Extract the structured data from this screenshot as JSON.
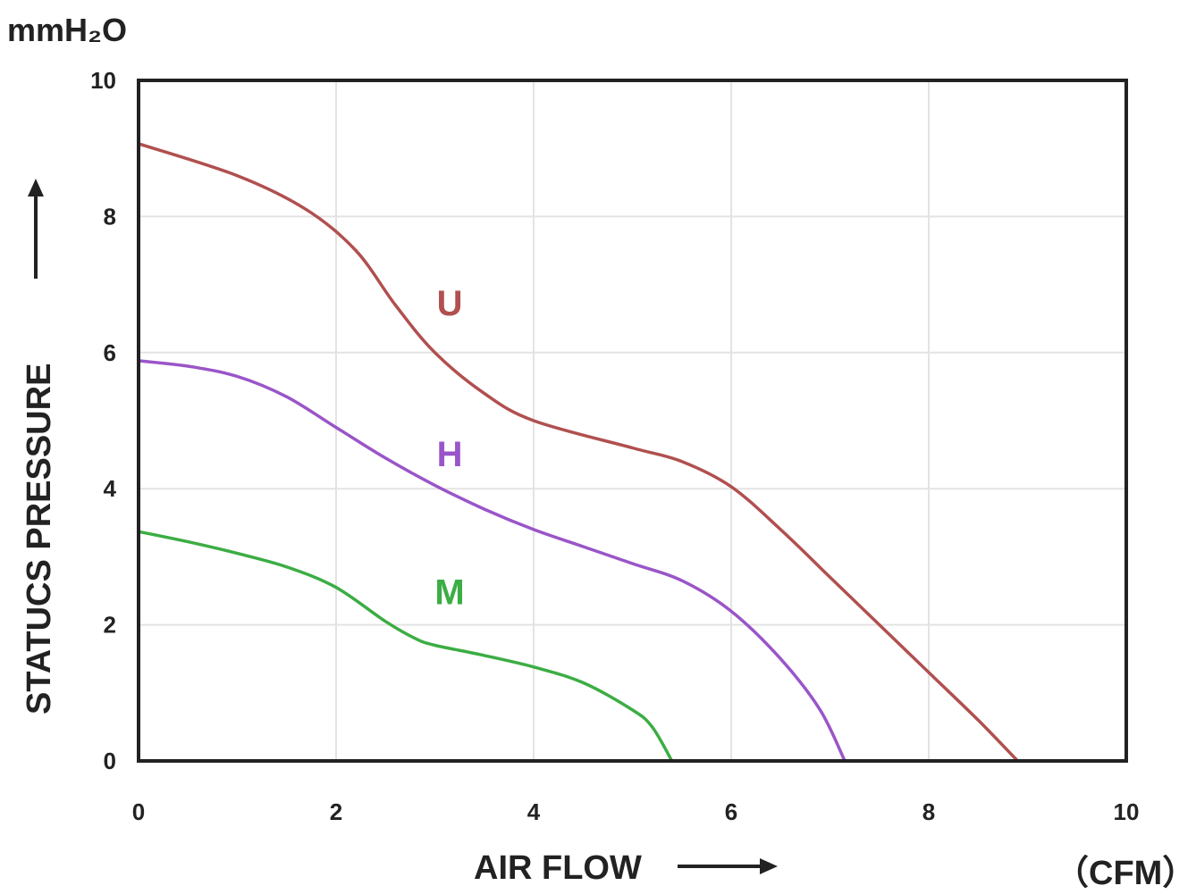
{
  "chart_data": {
    "type": "line",
    "xlabel": "AIR FLOW",
    "x_unit": "（CFM）",
    "ylabel": "STATUCS PRESSURE",
    "y_unit": "mmH₂O",
    "xlim": [
      0,
      10
    ],
    "ylim": [
      0,
      10
    ],
    "xticks": [
      "0",
      "2",
      "4",
      "6",
      "8",
      "10"
    ],
    "yticks": [
      "0",
      "2",
      "4",
      "6",
      "8",
      "10"
    ],
    "grid": true,
    "legend": "inline labels on curves",
    "series": [
      {
        "name": "U",
        "color": "#b0504f",
        "points": [
          [
            0,
            9.07
          ],
          [
            1,
            8.6
          ],
          [
            1.7,
            8.1
          ],
          [
            2.2,
            7.5
          ],
          [
            2.6,
            6.7
          ],
          [
            3,
            6.0
          ],
          [
            3.5,
            5.4
          ],
          [
            4,
            5.0
          ],
          [
            5,
            4.6
          ],
          [
            5.5,
            4.4
          ],
          [
            6,
            4.03
          ],
          [
            6.5,
            3.4
          ],
          [
            7,
            2.7
          ],
          [
            7.5,
            2.0
          ],
          [
            8,
            1.3
          ],
          [
            8.5,
            0.6
          ],
          [
            8.9,
            0.0
          ]
        ]
      },
      {
        "name": "H",
        "color": "#9a55c8",
        "points": [
          [
            0,
            5.88
          ],
          [
            0.5,
            5.8
          ],
          [
            1,
            5.65
          ],
          [
            1.5,
            5.35
          ],
          [
            2,
            4.9
          ],
          [
            2.5,
            4.45
          ],
          [
            3,
            4.05
          ],
          [
            3.5,
            3.7
          ],
          [
            4,
            3.4
          ],
          [
            4.5,
            3.15
          ],
          [
            5,
            2.9
          ],
          [
            5.5,
            2.65
          ],
          [
            6,
            2.2
          ],
          [
            6.5,
            1.5
          ],
          [
            6.9,
            0.75
          ],
          [
            7.15,
            0.0
          ]
        ]
      },
      {
        "name": "M",
        "color": "#3cad44",
        "points": [
          [
            0,
            3.37
          ],
          [
            0.5,
            3.22
          ],
          [
            1,
            3.05
          ],
          [
            1.5,
            2.85
          ],
          [
            2,
            2.55
          ],
          [
            2.5,
            2.05
          ],
          [
            2.8,
            1.8
          ],
          [
            3,
            1.7
          ],
          [
            3.5,
            1.55
          ],
          [
            4,
            1.38
          ],
          [
            4.5,
            1.15
          ],
          [
            5,
            0.75
          ],
          [
            5.2,
            0.5
          ],
          [
            5.4,
            0.0
          ]
        ]
      }
    ]
  }
}
